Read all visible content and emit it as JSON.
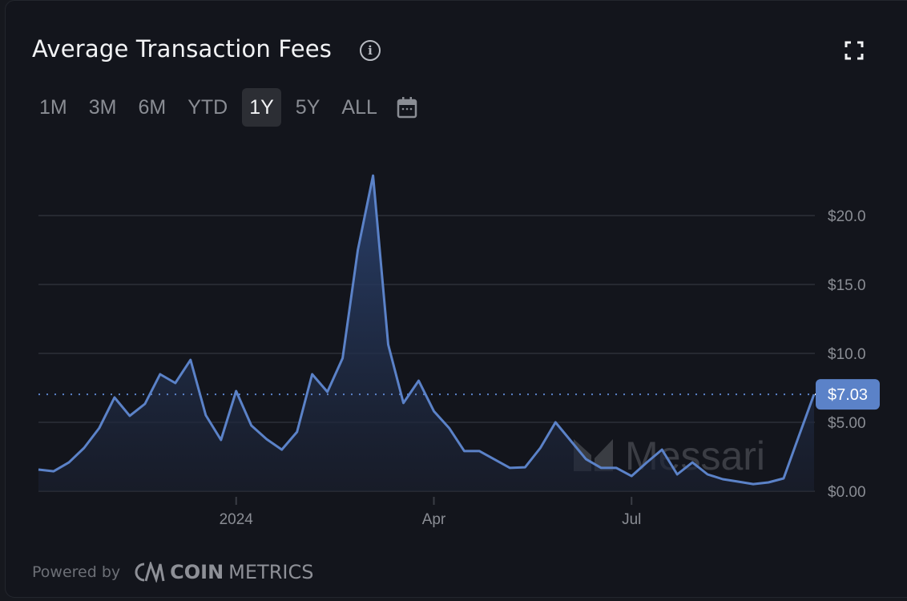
{
  "header": {
    "title": "Average Transaction Fees",
    "info_icon": "info-circle-icon",
    "expand_icon": "fullscreen-icon"
  },
  "tabs": [
    {
      "label": "1M",
      "active": false
    },
    {
      "label": "3M",
      "active": false
    },
    {
      "label": "6M",
      "active": false
    },
    {
      "label": "YTD",
      "active": false
    },
    {
      "label": "1Y",
      "active": true
    },
    {
      "label": "5Y",
      "active": false
    },
    {
      "label": "ALL",
      "active": false
    }
  ],
  "calendar_icon": "calendar-icon",
  "footer": {
    "powered_by": "Powered by",
    "brand_bold": "COIN",
    "brand_light": "METRICS"
  },
  "watermark": "Messari",
  "colors": {
    "line": "#5b82c8",
    "background": "#13151c",
    "badge": "#5b82c8"
  },
  "chart_data": {
    "type": "area",
    "title": "Average Transaction Fees",
    "xlabel": "",
    "ylabel": "",
    "ylim": [
      0,
      20
    ],
    "yticks": [
      "$0.00",
      "$5.00",
      "$10.0",
      "$15.0",
      "$20.0"
    ],
    "ytick_values": [
      0,
      5,
      10,
      15,
      20
    ],
    "xticks": [
      {
        "label": "2024",
        "date": "2024-01-01"
      },
      {
        "label": "Apr",
        "date": "2024-04-01"
      },
      {
        "label": "Jul",
        "date": "2024-07-01"
      }
    ],
    "grid": true,
    "current_value": 7.03,
    "current_label": "$7.03",
    "x": [
      "2023-10-02",
      "2023-10-09",
      "2023-10-16",
      "2023-10-23",
      "2023-10-30",
      "2023-11-06",
      "2023-11-13",
      "2023-11-20",
      "2023-11-27",
      "2023-12-04",
      "2023-12-11",
      "2023-12-18",
      "2023-12-25",
      "2024-01-01",
      "2024-01-08",
      "2024-01-15",
      "2024-01-22",
      "2024-01-29",
      "2024-02-05",
      "2024-02-12",
      "2024-02-19",
      "2024-02-26",
      "2024-03-04",
      "2024-03-11",
      "2024-03-18",
      "2024-03-25",
      "2024-04-01",
      "2024-04-08",
      "2024-04-15",
      "2024-04-22",
      "2024-04-29",
      "2024-05-06",
      "2024-05-13",
      "2024-05-20",
      "2024-05-27",
      "2024-06-03",
      "2024-06-10",
      "2024-06-17",
      "2024-06-24",
      "2024-07-01",
      "2024-07-08",
      "2024-07-15",
      "2024-07-22",
      "2024-07-29",
      "2024-08-05",
      "2024-08-12",
      "2024-08-19",
      "2024-08-26",
      "2024-09-02",
      "2024-09-09",
      "2024-09-16",
      "2024-09-23"
    ],
    "values": [
      1.57,
      1.45,
      2.09,
      3.14,
      4.59,
      6.8,
      5.47,
      6.34,
      8.49,
      7.85,
      9.53,
      5.52,
      3.72,
      7.27,
      4.77,
      3.78,
      3.02,
      4.3,
      8.49,
      7.21,
      9.65,
      17.5,
      22.9,
      10.64,
      6.4,
      8.02,
      5.81,
      4.59,
      2.91,
      2.91,
      2.3,
      1.69,
      1.74,
      3.14,
      5.0,
      3.66,
      2.33,
      1.69,
      1.69,
      1.1,
      2.09,
      3.02,
      1.22,
      2.09,
      1.22,
      0.87,
      0.7,
      0.52,
      0.64,
      0.93,
      4.0,
      7.03
    ]
  }
}
